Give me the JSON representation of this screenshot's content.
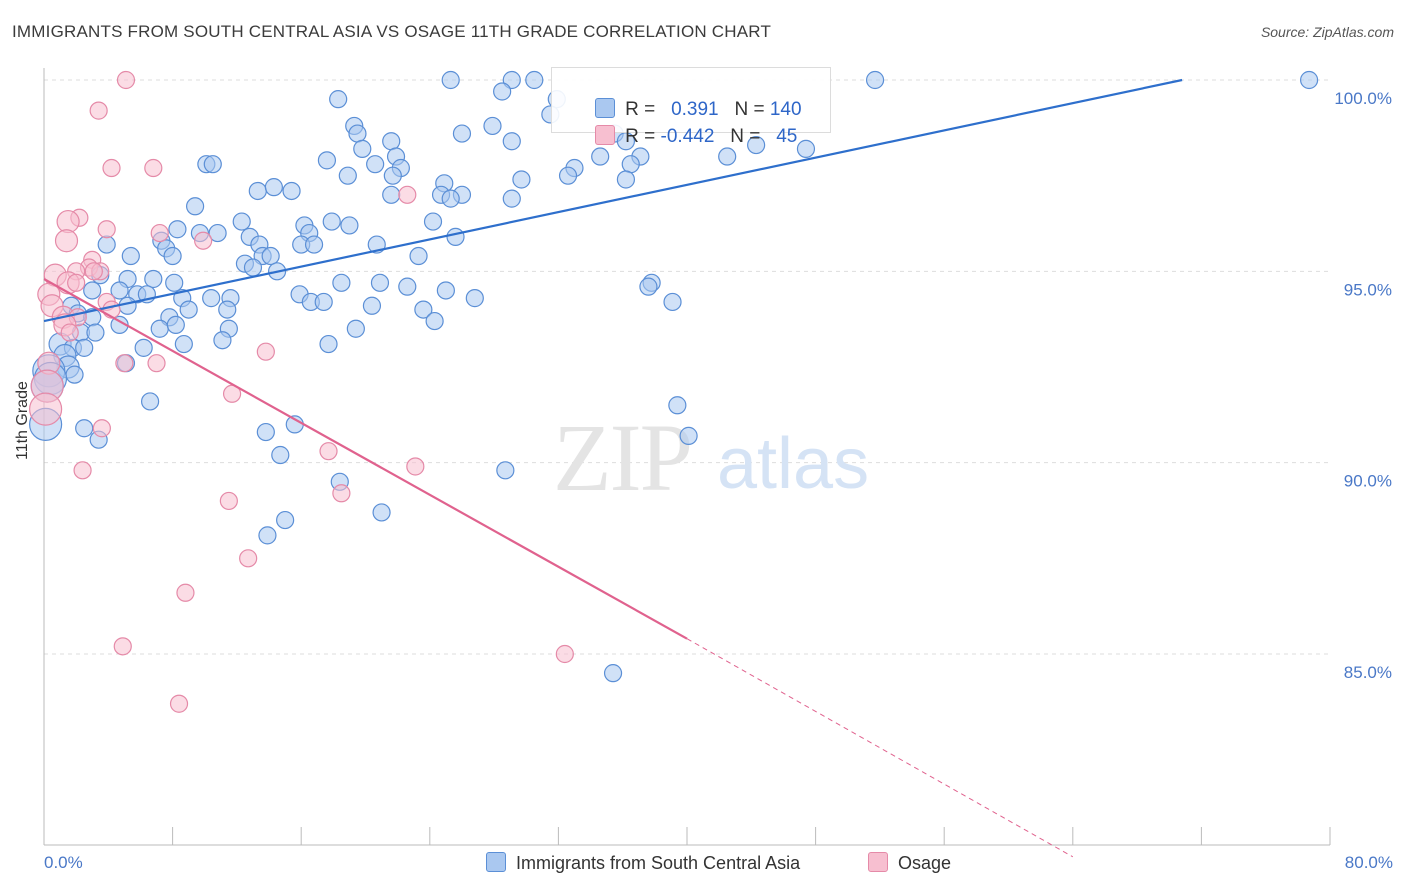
{
  "header": {
    "title": "IMMIGRANTS FROM SOUTH CENTRAL ASIA VS OSAGE 11TH GRADE CORRELATION CHART",
    "source": "Source: ZipAtlas.com"
  },
  "legend": {
    "series1": {
      "r_label": "R =",
      "r_value": "0.391",
      "n_label": "N =",
      "n_value": "140"
    },
    "series2": {
      "r_label": "R =",
      "r_value": "-0.442",
      "n_label": "N =",
      "n_value": "45"
    }
  },
  "bottom_legend": {
    "series1": "Immigrants from South Central Asia",
    "series2": "Osage"
  },
  "watermark": {
    "zip": "ZIP",
    "atlas": "atlas"
  },
  "colors": {
    "blue_fill": "#aac8f0",
    "blue_stroke": "#5b8fd6",
    "blue_line": "#2e6fcc",
    "pink_fill": "#f7bfd0",
    "pink_stroke": "#e58aa8",
    "pink_line": "#e0628e",
    "tick_text": "#4a78c7",
    "grid": "#dddddd"
  },
  "chart_data": {
    "type": "scatter",
    "title": "IMMIGRANTS FROM SOUTH CENTRAL ASIA VS OSAGE 11TH GRADE CORRELATION CHART",
    "xlabel": "",
    "ylabel": "11th Grade",
    "xlim": [
      0,
      80
    ],
    "ylim": [
      80,
      100.5
    ],
    "x_tick_labels": [
      "0.0%",
      "80.0%"
    ],
    "y_ticks": [
      85,
      90,
      95,
      100
    ],
    "y_tick_labels": [
      "85.0%",
      "90.0%",
      "95.0%",
      "100.0%"
    ],
    "grid": true,
    "legend_position": "top-center",
    "series": [
      {
        "name": "Immigrants from South Central Asia",
        "color": "#5b8fd6",
        "r": 0.391,
        "n": 140,
        "trend": {
          "x": [
            0,
            70.8
          ],
          "y": [
            93.7,
            100.0
          ]
        },
        "points": [
          [
            25.3,
            100.0
          ],
          [
            29.1,
            100.0
          ],
          [
            30.5,
            100.0
          ],
          [
            78.7,
            100.0
          ],
          [
            18.3,
            99.5
          ],
          [
            28.5,
            99.7
          ],
          [
            31.9,
            99.5
          ],
          [
            31.5,
            99.1
          ],
          [
            19.3,
            98.8
          ],
          [
            27.9,
            98.8
          ],
          [
            19.5,
            98.6
          ],
          [
            26.0,
            98.6
          ],
          [
            35.5,
            98.6
          ],
          [
            36.2,
            98.4
          ],
          [
            21.6,
            98.4
          ],
          [
            29.1,
            98.4
          ],
          [
            19.8,
            98.2
          ],
          [
            21.9,
            98.0
          ],
          [
            34.6,
            98.0
          ],
          [
            37.1,
            98.0
          ],
          [
            17.6,
            97.9
          ],
          [
            10.1,
            97.8
          ],
          [
            10.5,
            97.8
          ],
          [
            20.6,
            97.8
          ],
          [
            22.2,
            97.7
          ],
          [
            33.0,
            97.7
          ],
          [
            36.5,
            97.8
          ],
          [
            32.6,
            97.5
          ],
          [
            18.9,
            97.5
          ],
          [
            21.7,
            97.5
          ],
          [
            29.7,
            97.4
          ],
          [
            36.2,
            97.4
          ],
          [
            24.9,
            97.3
          ],
          [
            13.3,
            97.1
          ],
          [
            14.3,
            97.2
          ],
          [
            15.4,
            97.1
          ],
          [
            26.0,
            97.0
          ],
          [
            21.6,
            97.0
          ],
          [
            24.7,
            97.0
          ],
          [
            25.3,
            96.9
          ],
          [
            29.1,
            96.9
          ],
          [
            9.4,
            96.7
          ],
          [
            12.3,
            96.3
          ],
          [
            16.2,
            96.2
          ],
          [
            17.9,
            96.3
          ],
          [
            19.0,
            96.2
          ],
          [
            24.2,
            96.3
          ],
          [
            8.3,
            96.1
          ],
          [
            9.7,
            96.0
          ],
          [
            10.8,
            96.0
          ],
          [
            16.5,
            96.0
          ],
          [
            7.3,
            95.8
          ],
          [
            12.8,
            95.9
          ],
          [
            13.4,
            95.7
          ],
          [
            16.0,
            95.7
          ],
          [
            16.8,
            95.7
          ],
          [
            20.7,
            95.7
          ],
          [
            25.6,
            95.9
          ],
          [
            3.9,
            95.7
          ],
          [
            7.6,
            95.6
          ],
          [
            5.4,
            95.4
          ],
          [
            8.0,
            95.4
          ],
          [
            13.6,
            95.4
          ],
          [
            14.1,
            95.4
          ],
          [
            23.3,
            95.4
          ],
          [
            12.5,
            95.2
          ],
          [
            13.0,
            95.1
          ],
          [
            14.5,
            95.0
          ],
          [
            3.5,
            94.9
          ],
          [
            5.2,
            94.8
          ],
          [
            6.8,
            94.8
          ],
          [
            8.1,
            94.7
          ],
          [
            18.5,
            94.7
          ],
          [
            20.9,
            94.7
          ],
          [
            22.6,
            94.6
          ],
          [
            25.0,
            94.5
          ],
          [
            37.8,
            94.7
          ],
          [
            3.0,
            94.5
          ],
          [
            4.7,
            94.5
          ],
          [
            5.8,
            94.4
          ],
          [
            6.4,
            94.4
          ],
          [
            8.6,
            94.3
          ],
          [
            10.4,
            94.3
          ],
          [
            11.6,
            94.3
          ],
          [
            15.9,
            94.4
          ],
          [
            16.6,
            94.2
          ],
          [
            17.4,
            94.2
          ],
          [
            26.8,
            94.3
          ],
          [
            37.6,
            94.6
          ],
          [
            39.1,
            94.2
          ],
          [
            1.7,
            94.1
          ],
          [
            2.1,
            93.9
          ],
          [
            3.0,
            93.8
          ],
          [
            5.2,
            94.1
          ],
          [
            7.8,
            93.8
          ],
          [
            9.0,
            94.0
          ],
          [
            11.4,
            94.0
          ],
          [
            20.4,
            94.1
          ],
          [
            23.6,
            94.0
          ],
          [
            4.7,
            93.6
          ],
          [
            7.2,
            93.5
          ],
          [
            8.2,
            93.6
          ],
          [
            11.5,
            93.5
          ],
          [
            19.4,
            93.5
          ],
          [
            24.3,
            93.7
          ],
          [
            2.3,
            93.4
          ],
          [
            3.2,
            93.4
          ],
          [
            1.0,
            93.1
          ],
          [
            1.8,
            93.0
          ],
          [
            2.5,
            93.0
          ],
          [
            6.2,
            93.0
          ],
          [
            8.7,
            93.1
          ],
          [
            11.1,
            93.2
          ],
          [
            17.7,
            93.1
          ],
          [
            1.3,
            92.8
          ],
          [
            1.5,
            92.5
          ],
          [
            0.3,
            92.4
          ],
          [
            5.1,
            92.6
          ],
          [
            1.9,
            92.3
          ],
          [
            0.4,
            92.2
          ],
          [
            0.2,
            92.0
          ],
          [
            6.6,
            91.6
          ],
          [
            39.4,
            91.5
          ],
          [
            0.1,
            91.0
          ],
          [
            15.6,
            91.0
          ],
          [
            13.8,
            90.8
          ],
          [
            2.5,
            90.9
          ],
          [
            3.4,
            90.6
          ],
          [
            40.1,
            90.7
          ],
          [
            14.7,
            90.2
          ],
          [
            28.7,
            89.8
          ],
          [
            18.4,
            89.5
          ],
          [
            21.0,
            88.7
          ],
          [
            15.0,
            88.5
          ],
          [
            13.9,
            88.1
          ],
          [
            35.4,
            84.5
          ],
          [
            42.5,
            98.0
          ],
          [
            44.3,
            98.3
          ],
          [
            47.4,
            98.2
          ],
          [
            51.7,
            100.0
          ]
        ]
      },
      {
        "name": "Osage",
        "color": "#e58aa8",
        "r": -0.442,
        "n": 45,
        "trend": {
          "x": [
            0,
            40
          ],
          "y": [
            94.8,
            85.4
          ]
        },
        "trend_dashed": {
          "x": [
            40,
            64
          ],
          "y": [
            85.4,
            79.7
          ]
        },
        "points": [
          [
            5.1,
            100.0
          ],
          [
            3.4,
            99.2
          ],
          [
            4.2,
            97.7
          ],
          [
            6.8,
            97.7
          ],
          [
            22.6,
            97.0
          ],
          [
            2.2,
            96.4
          ],
          [
            1.5,
            96.3
          ],
          [
            3.9,
            96.1
          ],
          [
            7.2,
            96.0
          ],
          [
            9.9,
            95.8
          ],
          [
            1.4,
            95.8
          ],
          [
            3.0,
            95.3
          ],
          [
            2.8,
            95.1
          ],
          [
            3.5,
            95.0
          ],
          [
            3.1,
            95.0
          ],
          [
            2.0,
            95.0
          ],
          [
            0.7,
            94.9
          ],
          [
            1.5,
            94.7
          ],
          [
            2.0,
            94.7
          ],
          [
            0.3,
            94.4
          ],
          [
            3.9,
            94.2
          ],
          [
            0.5,
            94.1
          ],
          [
            4.2,
            94.0
          ],
          [
            1.2,
            93.8
          ],
          [
            2.1,
            93.8
          ],
          [
            1.3,
            93.6
          ],
          [
            1.6,
            93.4
          ],
          [
            13.8,
            92.9
          ],
          [
            5.0,
            92.6
          ],
          [
            7.0,
            92.6
          ],
          [
            0.3,
            92.6
          ],
          [
            0.2,
            92.0
          ],
          [
            11.7,
            91.8
          ],
          [
            0.1,
            91.4
          ],
          [
            3.6,
            90.9
          ],
          [
            17.7,
            90.3
          ],
          [
            23.1,
            89.9
          ],
          [
            2.4,
            89.8
          ],
          [
            18.5,
            89.2
          ],
          [
            11.5,
            89.0
          ],
          [
            12.7,
            87.5
          ],
          [
            8.8,
            86.6
          ],
          [
            4.9,
            85.2
          ],
          [
            32.4,
            85.0
          ],
          [
            8.4,
            83.7
          ]
        ]
      }
    ]
  }
}
